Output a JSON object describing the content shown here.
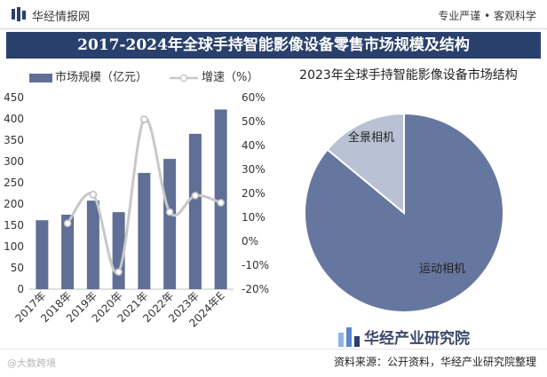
{
  "header": {
    "brand": "华经情报网",
    "slogan": "专业严谨 • 客观科学"
  },
  "title": "2017-2024年全球手持智能影像设备零售市场规模及结构",
  "footer": {
    "brand": "华经产业研究院",
    "source": "资料来源：公开资料，华经产业研究院整理",
    "badge": "@大数跨境"
  },
  "colors": {
    "bar": "#5f6f96",
    "line": "#c8c8c8",
    "title_bg": "#2a406c",
    "pie_main": "#66779f",
    "pie_minor": "#b9c2d4"
  },
  "chart_data": [
    {
      "type": "bar",
      "categories": [
        "2017年",
        "2018年",
        "2019年",
        "2020年",
        "2021年",
        "2022年",
        "2023年",
        "2024年E"
      ],
      "series": [
        {
          "name": "市场规模（亿元）",
          "values": [
            162,
            175,
            208,
            181,
            273,
            306,
            365,
            422
          ],
          "axis": "left"
        },
        {
          "name": "增速（%）",
          "type": "line",
          "values": [
            null,
            7.5,
            19.5,
            -12.8,
            50.9,
            12.2,
            19.1,
            16.1
          ],
          "axis": "right"
        }
      ],
      "ylim": [
        0,
        450
      ],
      "yticks": [
        0,
        50,
        100,
        150,
        200,
        250,
        300,
        350,
        400,
        450
      ],
      "y2lim": [
        -20,
        60
      ],
      "y2ticks": [
        "-20%",
        "-10%",
        "0%",
        "10%",
        "20%",
        "30%",
        "40%",
        "50%",
        "60%"
      ],
      "legend": "top-left",
      "grid": false
    },
    {
      "type": "pie",
      "title": "2023年全球手持智能影像设备市场结构",
      "labels": [
        "运动相机",
        "全景相机"
      ],
      "values": [
        86,
        14
      ]
    }
  ]
}
